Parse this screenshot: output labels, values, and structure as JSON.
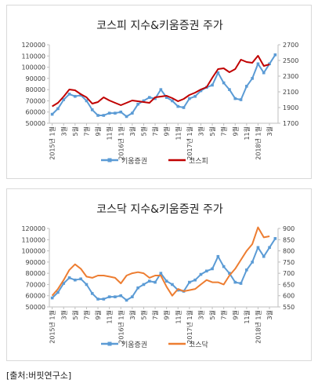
{
  "source_note": "[출처:버핏연구소]",
  "colors": {
    "kiwoom": "#5b9bd5",
    "kospi": "#c00000",
    "kosdaq": "#ed7d31",
    "axis": "#bfbfbf",
    "text": "#404040"
  },
  "chart_data": [
    {
      "type": "line",
      "title": "코스피 지수&키움증권 주가",
      "x_tick_labels": [
        "2015년 1월",
        "3월",
        "5월",
        "7월",
        "9월",
        "11월",
        "2016년 1월",
        "3월",
        "5월",
        "7월",
        "9월",
        "11월",
        "2017년 1월",
        "3월",
        "5월",
        "7월",
        "9월",
        "11월",
        "2018년 1월",
        "3월"
      ],
      "y_left_ticks": [
        50000,
        60000,
        70000,
        80000,
        90000,
        100000,
        110000,
        120000
      ],
      "y_right_ticks": [
        1700,
        1900,
        2100,
        2300,
        2500,
        2700
      ],
      "ylim_left": [
        50000,
        120000
      ],
      "ylim_right": [
        1700,
        2700
      ],
      "legend_position": "bottom",
      "series": [
        {
          "name": "키움증권",
          "axis": "left",
          "color": "#5b9bd5",
          "marker": true,
          "values": [
            58000,
            63000,
            71000,
            76000,
            74000,
            75000,
            70000,
            62000,
            57000,
            57000,
            59000,
            59000,
            60000,
            56000,
            59000,
            67000,
            70000,
            73000,
            72000,
            80000,
            73000,
            70000,
            65000,
            64000,
            72000,
            74000,
            79000,
            82000,
            84000,
            95000,
            86000,
            80000,
            72000,
            71000,
            83000,
            90000,
            103000,
            95000,
            103000,
            111000
          ]
        },
        {
          "name": "코스피",
          "axis": "right",
          "color": "#c00000",
          "marker": false,
          "values": [
            1915,
            1960,
            2040,
            2130,
            2120,
            2070,
            2030,
            1950,
            1970,
            2030,
            1990,
            1960,
            1930,
            1960,
            1990,
            1980,
            1970,
            1960,
            2030,
            2040,
            2050,
            2020,
            1980,
            2010,
            2060,
            2090,
            2130,
            2160,
            2280,
            2390,
            2400,
            2350,
            2390,
            2510,
            2480,
            2470,
            2560,
            2430,
            2450,
            null
          ]
        }
      ]
    },
    {
      "type": "line",
      "title": "코스닥 지수&키움증권 주가",
      "x_tick_labels": [
        "2015년 1월",
        "3월",
        "5월",
        "7월",
        "9월",
        "11월",
        "2016년 1월",
        "3월",
        "5월",
        "7월",
        "9월",
        "11월",
        "2017년 1월",
        "3월",
        "5월",
        "7월",
        "9월",
        "11월",
        "2018년 1월",
        "3월"
      ],
      "y_left_ticks": [
        50000,
        60000,
        70000,
        80000,
        90000,
        100000,
        110000,
        120000
      ],
      "y_right_ticks": [
        550,
        600,
        650,
        700,
        750,
        800,
        850,
        900
      ],
      "ylim_left": [
        50000,
        120000
      ],
      "ylim_right": [
        550,
        900
      ],
      "legend_position": "bottom",
      "series": [
        {
          "name": "키움증권",
          "axis": "left",
          "color": "#5b9bd5",
          "marker": true,
          "values": [
            58000,
            63000,
            71000,
            76000,
            74000,
            75000,
            70000,
            62000,
            57000,
            57000,
            59000,
            59000,
            60000,
            56000,
            59000,
            67000,
            70000,
            73000,
            72000,
            80000,
            73000,
            70000,
            65000,
            64000,
            72000,
            74000,
            79000,
            82000,
            84000,
            95000,
            86000,
            80000,
            72000,
            71000,
            83000,
            90000,
            103000,
            95000,
            103000,
            111000
          ]
        },
        {
          "name": "코스닥",
          "axis": "right",
          "color": "#ed7d31",
          "marker": false,
          "values": [
            600,
            630,
            670,
            715,
            740,
            720,
            685,
            680,
            690,
            690,
            685,
            680,
            655,
            690,
            700,
            705,
            700,
            680,
            690,
            690,
            640,
            600,
            630,
            620,
            625,
            630,
            650,
            670,
            660,
            660,
            650,
            690,
            720,
            760,
            800,
            830,
            905,
            860,
            865,
            null
          ]
        }
      ]
    }
  ]
}
